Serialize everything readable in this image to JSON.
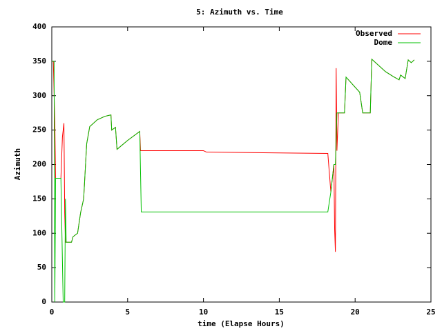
{
  "chart_data": {
    "type": "line",
    "title": "5: Azimuth vs. Time",
    "x_label": "time (Elapse Hours)",
    "y_label": "Azimuth",
    "xlim": [
      0,
      25
    ],
    "xticks": [
      0,
      5,
      10,
      15,
      20,
      25
    ],
    "ylim": [
      0,
      400
    ],
    "yticks": [
      0,
      50,
      100,
      150,
      200,
      250,
      300,
      350,
      400
    ],
    "grid": false,
    "legend": "top-right",
    "series": [
      {
        "name": "Observed",
        "color": "#ff0000",
        "x": [
          0,
          0.1,
          0.15,
          0.2,
          0.25,
          0.6,
          0.7,
          0.8,
          0.85,
          0.9,
          1.3,
          1.4,
          1.7,
          1.9,
          2.1,
          2.3,
          2.5,
          3,
          3.5,
          3.9,
          3.95,
          4.2,
          4.3,
          5,
          5.8,
          5.85,
          10,
          10.2,
          18.2,
          18.4,
          18.6,
          18.65,
          18.7,
          18.75,
          18.8,
          18.9,
          19.3,
          19.4,
          20.3,
          20.5,
          21,
          21.1,
          21.5,
          22,
          22.5,
          22.9,
          23,
          23.3,
          23.5,
          23.7,
          23.9
        ],
        "values": [
          350,
          350,
          305,
          262,
          180,
          180,
          240,
          260,
          130,
          87,
          87,
          95,
          100,
          130,
          150,
          230,
          255,
          265,
          270,
          272,
          250,
          254,
          222,
          235,
          248,
          220,
          220,
          218,
          216,
          160,
          200,
          105,
          73,
          340,
          220,
          275,
          275,
          327,
          305,
          275,
          275,
          353,
          345,
          335,
          328,
          323,
          330,
          325,
          352,
          348,
          352
        ]
      },
      {
        "name": "Dome",
        "color": "#00c000",
        "x": [
          0,
          0.15,
          0.2,
          0.25,
          0.6,
          0.75,
          0.85,
          0.9,
          0.95,
          1.3,
          1.4,
          1.7,
          1.9,
          2.1,
          2.3,
          2.5,
          3,
          3.5,
          3.9,
          3.95,
          4.2,
          4.3,
          5,
          5.8,
          5.9,
          18.2,
          18.4,
          18.6,
          18.7,
          18.8,
          18.9,
          19.3,
          19.4,
          20.3,
          20.5,
          21,
          21.1,
          21.5,
          22,
          22.5,
          22.9,
          23,
          23.3,
          23.5,
          23.7,
          23.9
        ],
        "values": [
          350,
          350,
          0,
          180,
          180,
          0,
          0,
          150,
          87,
          87,
          95,
          100,
          130,
          150,
          230,
          255,
          265,
          270,
          272,
          250,
          254,
          222,
          235,
          248,
          131,
          131,
          160,
          200,
          200,
          275,
          275,
          275,
          327,
          305,
          275,
          275,
          353,
          345,
          335,
          328,
          323,
          330,
          325,
          352,
          348,
          352
        ]
      }
    ]
  }
}
